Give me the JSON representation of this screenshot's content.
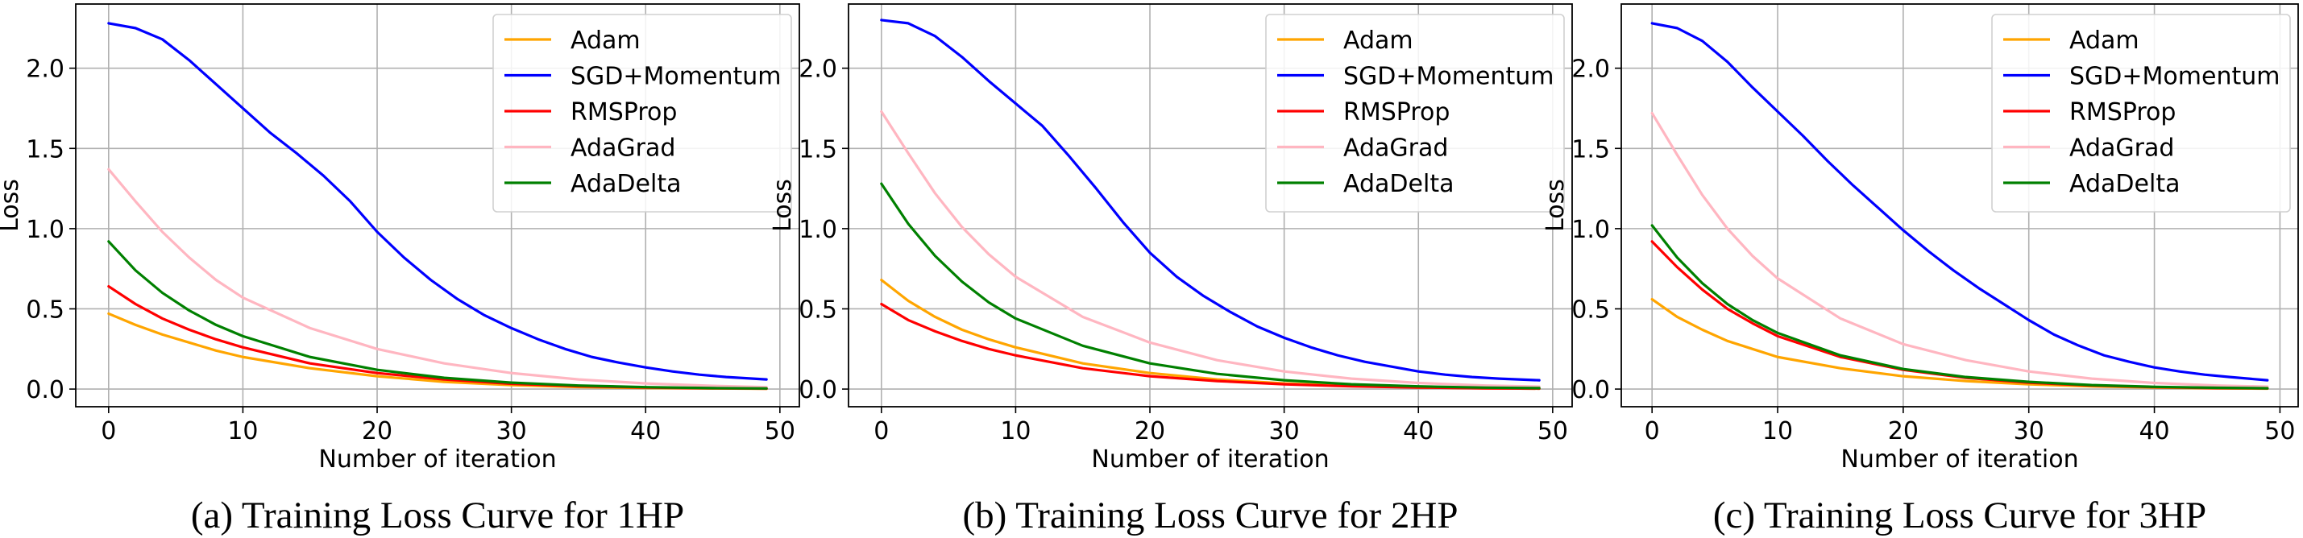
{
  "figure": {
    "colors": {
      "Adam": "#ffa500",
      "SGD+Momentum": "#0000ff",
      "RMSProp": "#ff0000",
      "AdaGrad": "#ffb6c1",
      "AdaDelta": "#008000",
      "grid": "#b0b0b0",
      "axes": "#000000"
    }
  },
  "chart_data": [
    {
      "type": "line",
      "caption": "(a) Training Loss Curve for 1HP",
      "xlabel": "Number of iteration",
      "ylabel": "Loss",
      "xlim": [
        -2.45,
        51.45
      ],
      "ylim": [
        -0.11,
        2.4
      ],
      "xticks": [
        0,
        10,
        20,
        30,
        40,
        50
      ],
      "xtick_labels": [
        "0",
        "10",
        "20",
        "30",
        "40",
        "50"
      ],
      "yticks": [
        0.0,
        0.5,
        1.0,
        1.5,
        2.0
      ],
      "ytick_labels": [
        "0.0",
        "0.5",
        "1.0",
        "1.5",
        "2.0"
      ],
      "grid": true,
      "legend_position": "top-right",
      "series": [
        {
          "name": "Adam",
          "color": "#ffa500",
          "x": [
            0,
            2,
            4,
            6,
            8,
            10,
            15,
            20,
            25,
            30,
            35,
            40,
            45,
            49
          ],
          "y": [
            0.47,
            0.4,
            0.34,
            0.29,
            0.24,
            0.2,
            0.13,
            0.08,
            0.045,
            0.025,
            0.013,
            0.007,
            0.004,
            0.002
          ]
        },
        {
          "name": "SGD+Momentum",
          "color": "#0000ff",
          "x": [
            0,
            2,
            4,
            6,
            8,
            10,
            12,
            14,
            16,
            18,
            20,
            22,
            24,
            26,
            28,
            30,
            32,
            34,
            36,
            38,
            40,
            42,
            44,
            46,
            49
          ],
          "y": [
            2.28,
            2.25,
            2.18,
            2.05,
            1.9,
            1.75,
            1.6,
            1.47,
            1.33,
            1.17,
            0.98,
            0.82,
            0.68,
            0.56,
            0.46,
            0.38,
            0.31,
            0.25,
            0.2,
            0.165,
            0.135,
            0.11,
            0.09,
            0.075,
            0.06
          ]
        },
        {
          "name": "RMSProp",
          "color": "#ff0000",
          "x": [
            0,
            2,
            4,
            6,
            8,
            10,
            15,
            20,
            25,
            30,
            35,
            40,
            45,
            49
          ],
          "y": [
            0.64,
            0.53,
            0.44,
            0.37,
            0.31,
            0.26,
            0.16,
            0.1,
            0.06,
            0.033,
            0.018,
            0.01,
            0.005,
            0.003
          ]
        },
        {
          "name": "AdaGrad",
          "color": "#ffb6c1",
          "x": [
            0,
            2,
            4,
            6,
            8,
            10,
            15,
            20,
            25,
            30,
            35,
            40,
            45,
            49
          ],
          "y": [
            1.37,
            1.17,
            0.98,
            0.82,
            0.68,
            0.57,
            0.38,
            0.25,
            0.16,
            0.1,
            0.06,
            0.035,
            0.02,
            0.012
          ]
        },
        {
          "name": "AdaDelta",
          "color": "#008000",
          "x": [
            0,
            2,
            4,
            6,
            8,
            10,
            15,
            20,
            25,
            30,
            35,
            40,
            45,
            49
          ],
          "y": [
            0.92,
            0.74,
            0.6,
            0.49,
            0.4,
            0.33,
            0.2,
            0.12,
            0.07,
            0.04,
            0.022,
            0.012,
            0.006,
            0.004
          ]
        }
      ]
    },
    {
      "type": "line",
      "caption": "(b) Training Loss Curve for 2HP",
      "xlabel": "Number of iteration",
      "ylabel": "Loss",
      "xlim": [
        -2.45,
        51.45
      ],
      "ylim": [
        -0.11,
        2.4
      ],
      "xticks": [
        0,
        10,
        20,
        30,
        40,
        50
      ],
      "xtick_labels": [
        "0",
        "10",
        "20",
        "30",
        "40",
        "50"
      ],
      "yticks": [
        0.0,
        0.5,
        1.0,
        1.5,
        2.0
      ],
      "ytick_labels": [
        "0.0",
        "0.5",
        "1.0",
        "1.5",
        "2.0"
      ],
      "grid": true,
      "legend_position": "top-right",
      "series": [
        {
          "name": "Adam",
          "color": "#ffa500",
          "x": [
            0,
            2,
            4,
            6,
            8,
            10,
            15,
            20,
            25,
            30,
            35,
            40,
            45,
            49
          ],
          "y": [
            0.68,
            0.55,
            0.45,
            0.37,
            0.31,
            0.26,
            0.16,
            0.1,
            0.06,
            0.035,
            0.02,
            0.01,
            0.005,
            0.003
          ]
        },
        {
          "name": "SGD+Momentum",
          "color": "#0000ff",
          "x": [
            0,
            2,
            4,
            6,
            8,
            10,
            12,
            14,
            16,
            18,
            20,
            22,
            24,
            26,
            28,
            30,
            32,
            34,
            36,
            38,
            40,
            42,
            44,
            46,
            49
          ],
          "y": [
            2.3,
            2.28,
            2.2,
            2.07,
            1.92,
            1.78,
            1.64,
            1.45,
            1.25,
            1.04,
            0.85,
            0.7,
            0.58,
            0.48,
            0.39,
            0.32,
            0.26,
            0.21,
            0.17,
            0.14,
            0.11,
            0.09,
            0.075,
            0.065,
            0.055
          ]
        },
        {
          "name": "RMSProp",
          "color": "#ff0000",
          "x": [
            0,
            2,
            4,
            6,
            8,
            10,
            15,
            20,
            25,
            30,
            35,
            40,
            45,
            49
          ],
          "y": [
            0.53,
            0.43,
            0.36,
            0.3,
            0.25,
            0.21,
            0.13,
            0.08,
            0.05,
            0.03,
            0.017,
            0.01,
            0.005,
            0.003
          ]
        },
        {
          "name": "AdaGrad",
          "color": "#ffb6c1",
          "x": [
            0,
            2,
            4,
            6,
            8,
            10,
            15,
            20,
            25,
            30,
            35,
            40,
            45,
            49
          ],
          "y": [
            1.73,
            1.47,
            1.22,
            1.01,
            0.84,
            0.7,
            0.45,
            0.29,
            0.18,
            0.11,
            0.065,
            0.038,
            0.022,
            0.015
          ]
        },
        {
          "name": "AdaDelta",
          "color": "#008000",
          "x": [
            0,
            2,
            4,
            6,
            8,
            10,
            15,
            20,
            25,
            30,
            35,
            40,
            45,
            49
          ],
          "y": [
            1.28,
            1.03,
            0.83,
            0.67,
            0.54,
            0.44,
            0.27,
            0.16,
            0.095,
            0.055,
            0.03,
            0.017,
            0.009,
            0.006
          ]
        }
      ]
    },
    {
      "type": "line",
      "caption": "(c) Training Loss Curve for 3HP",
      "xlabel": "Number of iteration",
      "ylabel": "Loss",
      "xlim": [
        -2.45,
        51.45
      ],
      "ylim": [
        -0.11,
        2.4
      ],
      "xticks": [
        0,
        10,
        20,
        30,
        40,
        50
      ],
      "xtick_labels": [
        "0",
        "10",
        "20",
        "30",
        "40",
        "50"
      ],
      "yticks": [
        0.0,
        0.5,
        1.0,
        1.5,
        2.0
      ],
      "ytick_labels": [
        "0.0",
        "0.5",
        "1.0",
        "1.5",
        "2.0"
      ],
      "grid": true,
      "legend_position": "top-right",
      "series": [
        {
          "name": "Adam",
          "color": "#ffa500",
          "x": [
            0,
            2,
            4,
            6,
            8,
            10,
            15,
            20,
            25,
            30,
            35,
            40,
            45,
            49
          ],
          "y": [
            0.56,
            0.45,
            0.37,
            0.3,
            0.25,
            0.2,
            0.13,
            0.08,
            0.05,
            0.03,
            0.017,
            0.01,
            0.005,
            0.003
          ]
        },
        {
          "name": "SGD+Momentum",
          "color": "#0000ff",
          "x": [
            0,
            2,
            4,
            6,
            8,
            10,
            12,
            14,
            16,
            18,
            20,
            22,
            24,
            26,
            28,
            30,
            32,
            34,
            36,
            38,
            40,
            42,
            44,
            46,
            49
          ],
          "y": [
            2.28,
            2.25,
            2.17,
            2.04,
            1.88,
            1.73,
            1.58,
            1.42,
            1.27,
            1.13,
            0.99,
            0.86,
            0.74,
            0.63,
            0.53,
            0.43,
            0.34,
            0.27,
            0.21,
            0.17,
            0.135,
            0.11,
            0.09,
            0.075,
            0.055
          ]
        },
        {
          "name": "RMSProp",
          "color": "#ff0000",
          "x": [
            0,
            2,
            4,
            6,
            8,
            10,
            15,
            20,
            25,
            30,
            35,
            40,
            45,
            49
          ],
          "y": [
            0.92,
            0.76,
            0.62,
            0.5,
            0.41,
            0.33,
            0.2,
            0.12,
            0.07,
            0.04,
            0.022,
            0.012,
            0.006,
            0.004
          ]
        },
        {
          "name": "AdaGrad",
          "color": "#ffb6c1",
          "x": [
            0,
            2,
            4,
            6,
            8,
            10,
            15,
            20,
            25,
            30,
            35,
            40,
            45,
            49
          ],
          "y": [
            1.72,
            1.46,
            1.21,
            1.0,
            0.83,
            0.69,
            0.44,
            0.28,
            0.18,
            0.11,
            0.065,
            0.038,
            0.022,
            0.015
          ]
        },
        {
          "name": "AdaDelta",
          "color": "#008000",
          "x": [
            0,
            2,
            4,
            6,
            8,
            10,
            15,
            20,
            25,
            30,
            35,
            40,
            45,
            49
          ],
          "y": [
            1.02,
            0.82,
            0.66,
            0.53,
            0.43,
            0.35,
            0.21,
            0.125,
            0.075,
            0.045,
            0.025,
            0.014,
            0.008,
            0.005
          ]
        }
      ]
    }
  ]
}
